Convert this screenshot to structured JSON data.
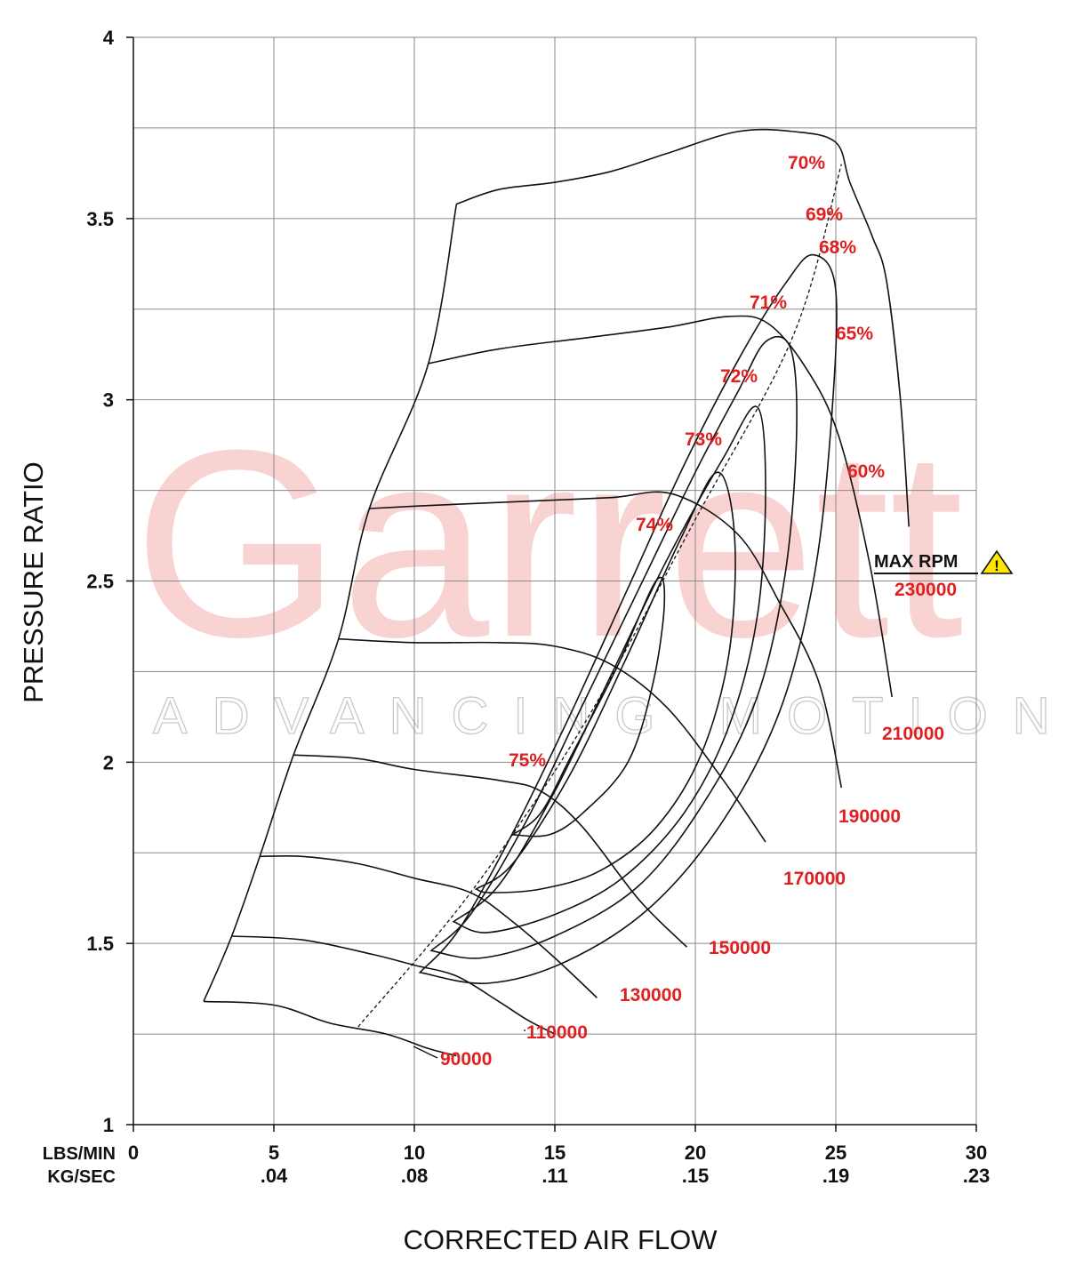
{
  "chart_data": {
    "type": "line",
    "title": "",
    "xlabel": "CORRECTED AIR FLOW",
    "ylabel": "PRESSURE RATIO",
    "xlim": [
      0,
      30
    ],
    "ylim": [
      1,
      4
    ],
    "grid": true,
    "x_unit_labels": [
      "LBS/MIN",
      "KG/SEC"
    ],
    "x_ticks": [
      {
        "lbs": "0",
        "kg": ""
      },
      {
        "lbs": "5",
        "kg": ".04"
      },
      {
        "lbs": "10",
        "kg": ".08"
      },
      {
        "lbs": "15",
        "kg": ".11"
      },
      {
        "lbs": "20",
        "kg": ".15"
      },
      {
        "lbs": "25",
        "kg": ".19"
      },
      {
        "lbs": "30",
        "kg": ".23"
      }
    ],
    "y_ticks": [
      "1",
      "1.5",
      "2",
      "2.5",
      "3",
      "3.5",
      "4"
    ],
    "watermark": {
      "brand": "Garrett",
      "tagline": "ADVANCING MOTION"
    },
    "max_rpm_label": "MAX RPM",
    "warning_icon": "warning-triangle-icon",
    "speed_lines": [
      {
        "label": "90000",
        "points": [
          [
            2.5,
            1.34
          ],
          [
            5,
            1.33
          ],
          [
            7,
            1.28
          ],
          [
            9,
            1.25
          ],
          [
            10.5,
            1.21
          ],
          [
            11.5,
            1.19
          ]
        ]
      },
      {
        "label": "110000",
        "points": [
          [
            3.5,
            1.52
          ],
          [
            6,
            1.51
          ],
          [
            8.5,
            1.47
          ],
          [
            10,
            1.44
          ],
          [
            11.5,
            1.41
          ],
          [
            13,
            1.34
          ],
          [
            14,
            1.29
          ],
          [
            15,
            1.25
          ]
        ]
      },
      {
        "label": "130000",
        "points": [
          [
            4.5,
            1.74
          ],
          [
            6,
            1.74
          ],
          [
            8,
            1.72
          ],
          [
            10,
            1.68
          ],
          [
            12,
            1.64
          ],
          [
            13.5,
            1.56
          ],
          [
            15,
            1.46
          ],
          [
            16.5,
            1.35
          ]
        ]
      },
      {
        "label": "150000",
        "points": [
          [
            5.7,
            2.02
          ],
          [
            8,
            2.01
          ],
          [
            10,
            1.98
          ],
          [
            13,
            1.95
          ],
          [
            14.5,
            1.92
          ],
          [
            16,
            1.82
          ],
          [
            18,
            1.62
          ],
          [
            19.7,
            1.49
          ]
        ]
      },
      {
        "label": "170000",
        "points": [
          [
            7.3,
            2.34
          ],
          [
            10,
            2.33
          ],
          [
            13,
            2.33
          ],
          [
            15,
            2.32
          ],
          [
            17,
            2.27
          ],
          [
            19,
            2.15
          ],
          [
            21,
            1.95
          ],
          [
            22.5,
            1.78
          ]
        ]
      },
      {
        "label": "190000",
        "points": [
          [
            8.4,
            2.7
          ],
          [
            11,
            2.71
          ],
          [
            14,
            2.72
          ],
          [
            17,
            2.73
          ],
          [
            19.2,
            2.74
          ],
          [
            21.5,
            2.63
          ],
          [
            23,
            2.44
          ],
          [
            24.4,
            2.22
          ],
          [
            25.2,
            1.93
          ]
        ]
      },
      {
        "label": "210000",
        "points": [
          [
            10.5,
            3.1
          ],
          [
            13,
            3.14
          ],
          [
            16,
            3.17
          ],
          [
            19,
            3.2
          ],
          [
            21.2,
            3.23
          ],
          [
            22.6,
            3.21
          ],
          [
            24,
            3.08
          ],
          [
            25.1,
            2.9
          ],
          [
            26.2,
            2.55
          ],
          [
            27,
            2.18
          ]
        ]
      },
      {
        "label": "230000",
        "points": [
          [
            11.5,
            3.54
          ],
          [
            13,
            3.58
          ],
          [
            15,
            3.6
          ],
          [
            17,
            3.63
          ],
          [
            19,
            3.68
          ],
          [
            21.5,
            3.74
          ],
          [
            23.5,
            3.74
          ],
          [
            25,
            3.71
          ],
          [
            25.5,
            3.6
          ],
          [
            26.3,
            3.45
          ],
          [
            26.8,
            3.33
          ],
          [
            27.3,
            3.0
          ],
          [
            27.6,
            2.65
          ]
        ]
      }
    ],
    "surge_line": [
      [
        2.5,
        1.34
      ],
      [
        3.5,
        1.52
      ],
      [
        4.5,
        1.74
      ],
      [
        5.7,
        2.02
      ],
      [
        7.3,
        2.34
      ],
      [
        8.4,
        2.7
      ],
      [
        10.5,
        3.1
      ],
      [
        11.5,
        3.54
      ]
    ],
    "efficiency_islands": [
      {
        "label": "75%",
        "points": [
          [
            13.5,
            1.8
          ],
          [
            14.5,
            1.86
          ],
          [
            15.6,
            2.02
          ],
          [
            17.2,
            2.26
          ],
          [
            18.6,
            2.5
          ],
          [
            18.9,
            2.44
          ],
          [
            18.5,
            2.22
          ],
          [
            17.6,
            2.0
          ],
          [
            16.0,
            1.86
          ],
          [
            14.8,
            1.8
          ],
          [
            13.5,
            1.8
          ]
        ]
      },
      {
        "label": "74%",
        "points": [
          [
            12.2,
            1.65
          ],
          [
            13.5,
            1.72
          ],
          [
            15.5,
            1.96
          ],
          [
            17.5,
            2.28
          ],
          [
            19.5,
            2.62
          ],
          [
            20.8,
            2.8
          ],
          [
            21.4,
            2.62
          ],
          [
            21.2,
            2.3
          ],
          [
            20.2,
            2.02
          ],
          [
            18.6,
            1.82
          ],
          [
            16.6,
            1.7
          ],
          [
            14.5,
            1.65
          ],
          [
            12.7,
            1.64
          ],
          [
            12.2,
            1.65
          ]
        ]
      },
      {
        "label": "73%",
        "points": [
          [
            11.4,
            1.56
          ],
          [
            13,
            1.66
          ],
          [
            15,
            1.92
          ],
          [
            17,
            2.24
          ],
          [
            19,
            2.56
          ],
          [
            21,
            2.84
          ],
          [
            22.2,
            2.98
          ],
          [
            22.5,
            2.75
          ],
          [
            22.2,
            2.4
          ],
          [
            21.2,
            2.1
          ],
          [
            19.6,
            1.86
          ],
          [
            17.4,
            1.68
          ],
          [
            15.0,
            1.58
          ],
          [
            12.6,
            1.53
          ],
          [
            11.4,
            1.56
          ]
        ]
      },
      {
        "label": "72%",
        "points": [
          [
            10.6,
            1.48
          ],
          [
            12,
            1.58
          ],
          [
            14,
            1.84
          ],
          [
            16,
            2.16
          ],
          [
            18,
            2.48
          ],
          [
            20,
            2.8
          ],
          [
            21.5,
            3.02
          ],
          [
            22.5,
            3.16
          ],
          [
            23.4,
            3.14
          ],
          [
            23.6,
            2.9
          ],
          [
            23.2,
            2.52
          ],
          [
            22.2,
            2.18
          ],
          [
            20.4,
            1.9
          ],
          [
            18.0,
            1.66
          ],
          [
            15.0,
            1.52
          ],
          [
            12.4,
            1.46
          ],
          [
            10.6,
            1.48
          ]
        ]
      },
      {
        "label": "71%",
        "points": [
          [
            10.2,
            1.42
          ],
          [
            11.6,
            1.54
          ],
          [
            13.6,
            1.82
          ],
          [
            15.6,
            2.14
          ],
          [
            17.6,
            2.48
          ],
          [
            19.6,
            2.82
          ],
          [
            21.6,
            3.12
          ],
          [
            23.2,
            3.32
          ],
          [
            24.2,
            3.4
          ],
          [
            25.0,
            3.3
          ],
          [
            24.8,
            2.9
          ],
          [
            24.2,
            2.5
          ],
          [
            23.0,
            2.14
          ],
          [
            21.0,
            1.84
          ],
          [
            18.4,
            1.6
          ],
          [
            15.4,
            1.45
          ],
          [
            12.6,
            1.39
          ],
          [
            10.2,
            1.42
          ]
        ]
      }
    ],
    "efficiency_labels": [
      "75%",
      "74%",
      "73%",
      "72%",
      "71%",
      "70%",
      "69%",
      "68%",
      "65%",
      "60%"
    ],
    "peak_efficiency_line": [
      [
        8,
        1.27
      ],
      [
        12,
        1.64
      ],
      [
        16,
        2.1
      ],
      [
        20,
        2.67
      ],
      [
        23.5,
        3.18
      ],
      [
        25.2,
        3.65
      ]
    ]
  }
}
